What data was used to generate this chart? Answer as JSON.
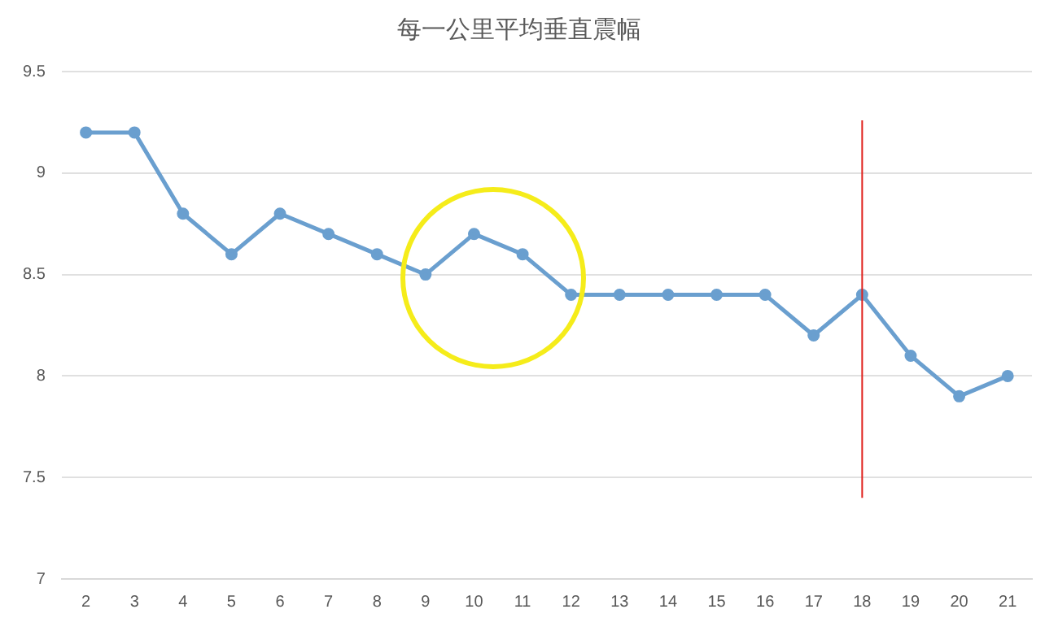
{
  "chart_data": {
    "type": "line",
    "title": "每一公里平均垂直震幅",
    "categories": [
      "2",
      "3",
      "4",
      "5",
      "6",
      "7",
      "8",
      "9",
      "10",
      "11",
      "12",
      "13",
      "14",
      "15",
      "16",
      "17",
      "18",
      "19",
      "20",
      "21"
    ],
    "series": [
      {
        "color": "#6a9fcf",
        "values": [
          9.2,
          9.2,
          8.8,
          8.6,
          8.8,
          8.7,
          8.6,
          8.5,
          8.7,
          8.6,
          8.4,
          8.4,
          8.4,
          8.4,
          8.4,
          8.2,
          8.4,
          8.1,
          7.9,
          8.0
        ]
      }
    ],
    "ylim": [
      7,
      9.5
    ],
    "yticks": [
      7,
      7.5,
      8,
      8.5,
      9,
      9.5
    ],
    "grid": "y",
    "legend": false,
    "marker": "circle",
    "line_style": "solid",
    "ref_lines": [
      {
        "axis": "x",
        "value": "18",
        "color": "#e0201b"
      }
    ]
  }
}
